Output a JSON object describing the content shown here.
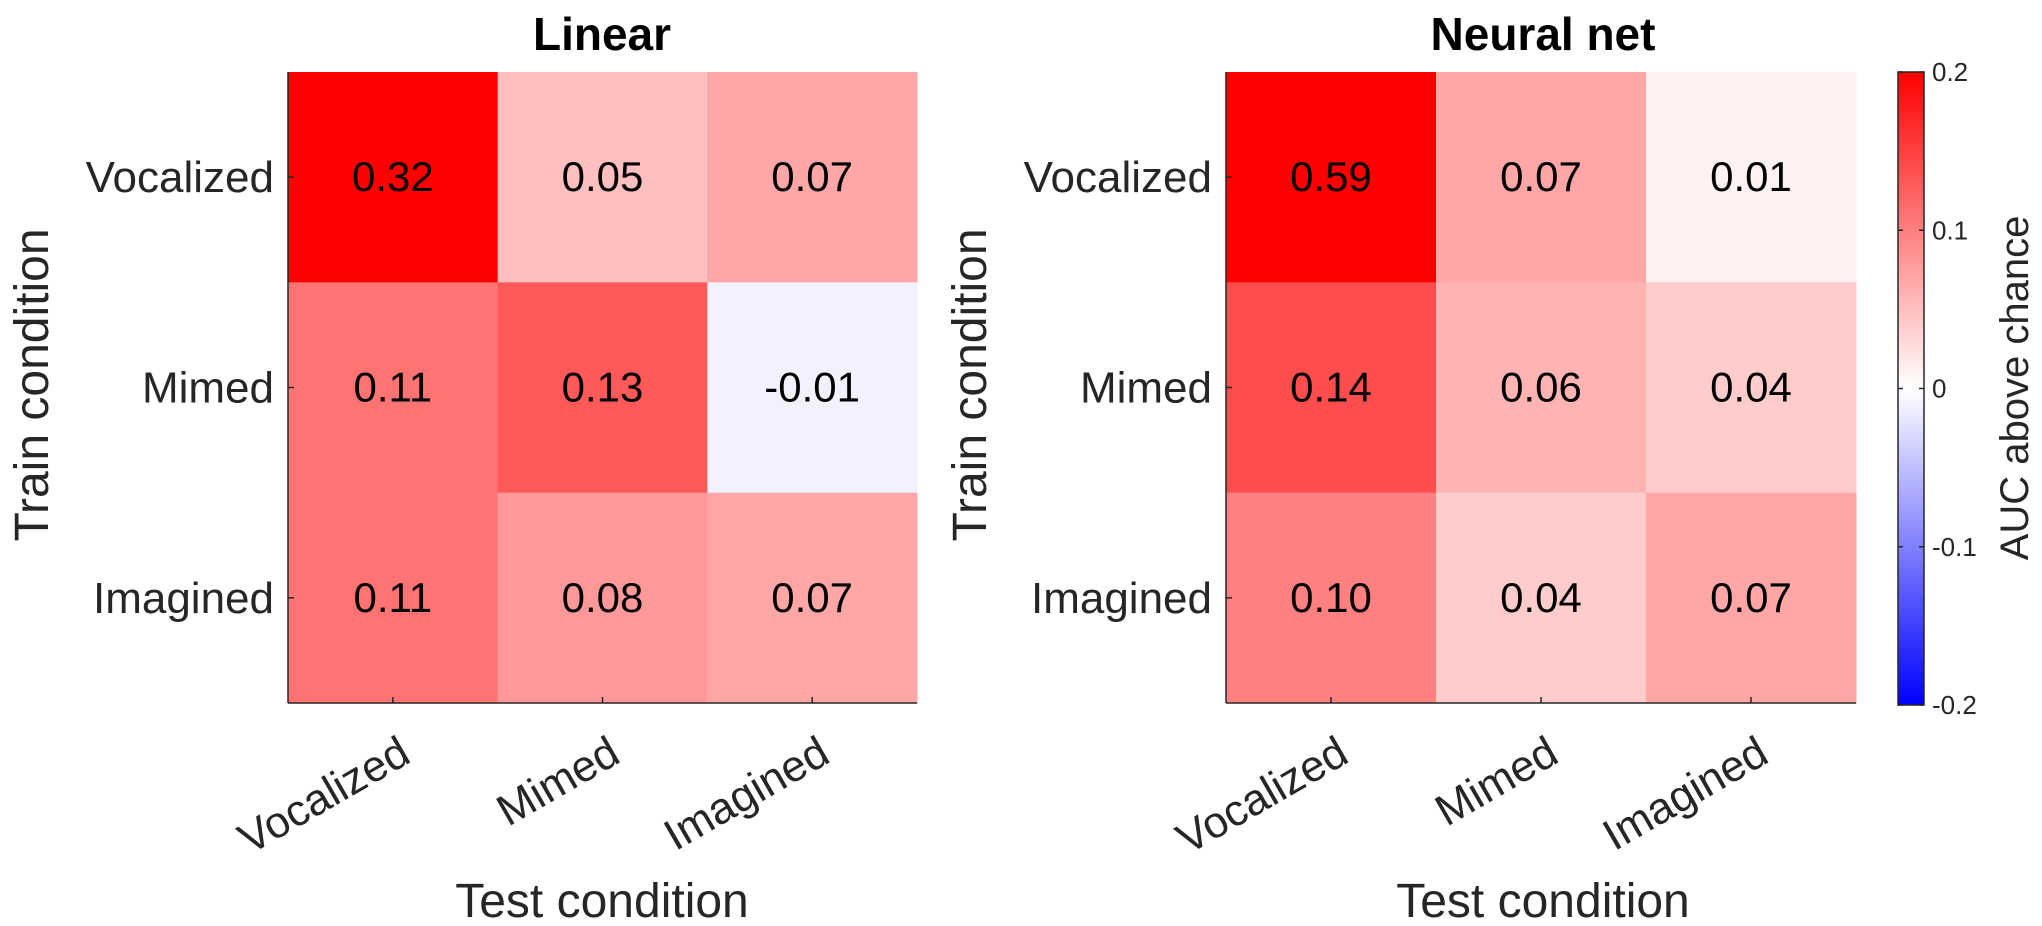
{
  "chart_data": [
    {
      "type": "heatmap",
      "title": "Linear",
      "xlabel": "Test condition",
      "ylabel": "Train condition",
      "x_categories": [
        "Vocalized",
        "Mimed",
        "Imagined"
      ],
      "y_categories": [
        "Vocalized",
        "Mimed",
        "Imagined"
      ],
      "values": [
        [
          0.32,
          0.05,
          0.07
        ],
        [
          0.11,
          0.13,
          -0.01
        ],
        [
          0.11,
          0.08,
          0.07
        ]
      ],
      "labels": [
        [
          "0.32",
          "0.05",
          "0.07"
        ],
        [
          "0.11",
          "0.13",
          "-0.01"
        ],
        [
          "0.11",
          "0.08",
          "0.07"
        ]
      ]
    },
    {
      "type": "heatmap",
      "title": "Neural net",
      "xlabel": "Test condition",
      "ylabel": "Train condition",
      "x_categories": [
        "Vocalized",
        "Mimed",
        "Imagined"
      ],
      "y_categories": [
        "Vocalized",
        "Mimed",
        "Imagined"
      ],
      "values": [
        [
          0.59,
          0.07,
          0.01
        ],
        [
          0.14,
          0.06,
          0.04
        ],
        [
          0.1,
          0.04,
          0.07
        ]
      ],
      "labels": [
        [
          "0.59",
          "0.07",
          "0.01"
        ],
        [
          "0.14",
          "0.06",
          "0.04"
        ],
        [
          "0.10",
          "0.04",
          "0.07"
        ]
      ]
    }
  ],
  "colorbar": {
    "label": "AUC above chance",
    "clim": [
      -0.2,
      0.2
    ],
    "ticks": [
      0.2,
      0.1,
      0,
      -0.1,
      -0.2
    ],
    "tick_labels": [
      "0.2",
      "0.1",
      "0",
      "-0.1",
      "-0.2"
    ],
    "colormap": {
      "low": "#0000ff",
      "mid": "#ffffff",
      "high": "#ff0000"
    }
  }
}
